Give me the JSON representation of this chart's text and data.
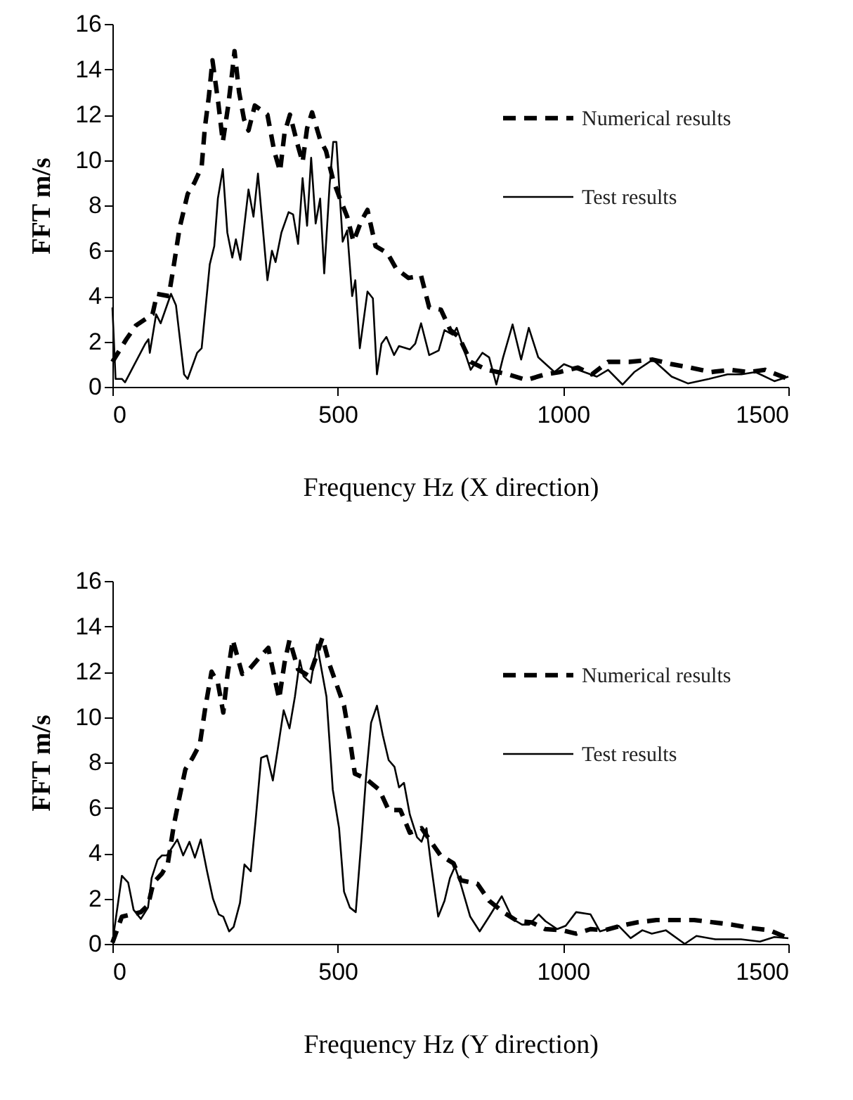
{
  "chart_data": [
    {
      "type": "line",
      "xlabel": "Frequency Hz (X direction)",
      "ylabel": "FFT m/s",
      "xlim": [
        0,
        1500
      ],
      "xticks": [
        0,
        500,
        1000,
        1500
      ],
      "ylim": [
        0,
        16
      ],
      "yticks": [
        0,
        2,
        4,
        6,
        8,
        10,
        12,
        14,
        16
      ],
      "grid": false,
      "legend": "top right",
      "series": [
        {
          "name": "Numerical results",
          "color": "#000000",
          "line_style": "dashed",
          "x": [
            0,
            31,
            52,
            89,
            99,
            125,
            135,
            149,
            167,
            182,
            198,
            205,
            214,
            222,
            235,
            245,
            257,
            266,
            271,
            281,
            292,
            302,
            316,
            344,
            359,
            372,
            382,
            394,
            412,
            422,
            432,
            443,
            461,
            474,
            490,
            505,
            521,
            535,
            552,
            566,
            584,
            610,
            630,
            657,
            685,
            703,
            729,
            750,
            769,
            795,
            831,
            878,
            919,
            960,
            992,
            1033,
            1064,
            1100,
            1147,
            1199,
            1241,
            1282,
            1329,
            1370,
            1412,
            1448,
            1500
          ],
          "values": [
            1.1,
            2.1,
            2.7,
            3.2,
            4.1,
            4.0,
            5.2,
            7.0,
            8.5,
            9.0,
            9.7,
            11.4,
            12.8,
            14.4,
            12.5,
            10.8,
            12.4,
            13.9,
            14.8,
            13.0,
            11.8,
            11.3,
            12.4,
            12.0,
            10.4,
            9.5,
            11.2,
            12.0,
            10.6,
            9.9,
            11.4,
            12.1,
            10.9,
            10.4,
            9.1,
            8.3,
            7.5,
            6.4,
            7.3,
            7.8,
            6.2,
            5.9,
            5.2,
            4.8,
            4.9,
            3.5,
            3.4,
            2.5,
            2.2,
            1.1,
            0.75,
            0.55,
            0.3,
            0.55,
            0.65,
            0.85,
            0.55,
            1.1,
            1.1,
            1.2,
            1.0,
            0.85,
            0.65,
            0.75,
            0.65,
            0.75,
            0.35
          ]
        },
        {
          "name": "Test results",
          "color": "#000000",
          "line_style": "solid",
          "x": [
            0,
            7,
            21,
            28,
            73,
            80,
            83,
            97,
            107,
            130,
            141,
            159,
            167,
            188,
            198,
            216,
            226,
            234,
            245,
            255,
            266,
            274,
            284,
            302,
            313,
            323,
            344,
            354,
            362,
            375,
            391,
            401,
            412,
            422,
            432,
            441,
            451,
            461,
            470,
            482,
            490,
            497,
            511,
            521,
            532,
            539,
            549,
            566,
            578,
            587,
            597,
            608,
            625,
            636,
            660,
            672,
            685,
            703,
            724,
            737,
            755,
            764,
            779,
            795,
            821,
            836,
            852,
            867,
            888,
            907,
            924,
            945,
            981,
            1002,
            1033,
            1075,
            1100,
            1132,
            1158,
            1199,
            1241,
            1277,
            1324,
            1365,
            1396,
            1427,
            1469,
            1500
          ],
          "values": [
            3.5,
            0.35,
            0.35,
            0.2,
            1.9,
            2.1,
            1.5,
            3.2,
            2.8,
            4.1,
            3.6,
            0.55,
            0.35,
            1.5,
            1.7,
            5.4,
            6.2,
            8.3,
            9.6,
            6.8,
            5.7,
            6.5,
            5.6,
            8.7,
            7.5,
            9.4,
            4.7,
            6.0,
            5.5,
            6.8,
            7.7,
            7.6,
            6.3,
            9.2,
            7.1,
            10.1,
            7.2,
            8.3,
            5.0,
            8.9,
            10.8,
            10.8,
            6.4,
            6.9,
            4.0,
            4.7,
            1.7,
            4.2,
            3.9,
            0.55,
            1.9,
            2.2,
            1.4,
            1.8,
            1.65,
            1.9,
            2.8,
            1.4,
            1.6,
            2.5,
            2.3,
            2.6,
            1.7,
            0.75,
            1.5,
            1.3,
            0.1,
            1.3,
            2.75,
            1.2,
            2.6,
            1.3,
            0.65,
            1.0,
            0.75,
            0.45,
            0.75,
            0.1,
            0.65,
            1.2,
            0.45,
            0.15,
            0.35,
            0.55,
            0.55,
            0.65,
            0.25,
            0.45
          ]
        }
      ]
    },
    {
      "type": "line",
      "xlabel": "Frequency Hz (Y direction)",
      "ylabel": "FFT m/s",
      "xlim": [
        0,
        1500
      ],
      "xticks": [
        0,
        500,
        1000,
        1500
      ],
      "ylim": [
        0,
        16
      ],
      "yticks": [
        0,
        2,
        4,
        6,
        8,
        10,
        12,
        14,
        16
      ],
      "grid": false,
      "legend": "top right",
      "series": [
        {
          "name": "Numerical results",
          "color": "#000000",
          "line_style": "dashed",
          "x": [
            0,
            21,
            42,
            63,
            79,
            91,
            110,
            123,
            136,
            147,
            162,
            178,
            194,
            206,
            220,
            234,
            246,
            255,
            267,
            288,
            299,
            325,
            346,
            359,
            370,
            382,
            393,
            412,
            437,
            451,
            466,
            482,
            498,
            514,
            527,
            538,
            561,
            592,
            613,
            639,
            660,
            686,
            707,
            728,
            757,
            773,
            810,
            836,
            867,
            899,
            930,
            961,
            998,
            1029,
            1061,
            1092,
            1129,
            1165,
            1207,
            1249,
            1291,
            1333,
            1374,
            1416,
            1458,
            1500
          ],
          "values": [
            0.05,
            1.2,
            1.3,
            1.4,
            1.7,
            2.7,
            3.1,
            3.55,
            5.2,
            6.3,
            7.7,
            8.2,
            8.8,
            10.4,
            12.0,
            11.5,
            10.2,
            11.8,
            13.4,
            11.9,
            12.0,
            12.6,
            13.05,
            11.8,
            10.8,
            12.4,
            13.4,
            12.1,
            11.8,
            12.6,
            13.5,
            12.3,
            11.4,
            10.5,
            9.0,
            7.5,
            7.3,
            6.8,
            5.9,
            5.9,
            4.9,
            5.1,
            4.5,
            3.9,
            3.55,
            2.8,
            2.65,
            1.9,
            1.4,
            1.0,
            0.95,
            0.65,
            0.6,
            0.45,
            0.65,
            0.6,
            0.8,
            0.95,
            1.05,
            1.05,
            1.05,
            0.95,
            0.85,
            0.7,
            0.6,
            0.25
          ]
        },
        {
          "name": "Test results",
          "color": "#000000",
          "line_style": "solid",
          "x": [
            0,
            21,
            35,
            47,
            63,
            79,
            87,
            100,
            110,
            121,
            131,
            144,
            157,
            171,
            183,
            196,
            210,
            223,
            236,
            246,
            259,
            269,
            283,
            293,
            307,
            318,
            330,
            343,
            356,
            367,
            380,
            393,
            405,
            416,
            424,
            440,
            454,
            464,
            475,
            489,
            503,
            514,
            527,
            540,
            553,
            563,
            574,
            587,
            600,
            613,
            626,
            636,
            647,
            660,
            676,
            686,
            697,
            707,
            723,
            737,
            749,
            760,
            772,
            794,
            815,
            836,
            864,
            888,
            909,
            925,
            946,
            961,
            987,
            1006,
            1029,
            1061,
            1082,
            1123,
            1150,
            1176,
            1197,
            1228,
            1270,
            1296,
            1338,
            1395,
            1437,
            1469,
            1500
          ],
          "values": [
            0.05,
            3.0,
            2.7,
            1.5,
            1.1,
            1.6,
            2.9,
            3.7,
            3.9,
            3.9,
            4.2,
            4.6,
            3.9,
            4.5,
            3.8,
            4.6,
            3.2,
            2.0,
            1.3,
            1.2,
            0.55,
            0.75,
            1.8,
            3.5,
            3.2,
            5.5,
            8.2,
            8.3,
            7.2,
            8.6,
            10.3,
            9.5,
            10.9,
            12.5,
            11.8,
            11.5,
            13.2,
            12.1,
            10.9,
            6.8,
            5.1,
            2.3,
            1.6,
            1.4,
            4.7,
            7.4,
            9.75,
            10.5,
            9.2,
            8.1,
            7.8,
            6.9,
            7.1,
            5.7,
            4.7,
            4.5,
            5.1,
            3.5,
            1.2,
            1.9,
            2.9,
            3.4,
            2.7,
            1.2,
            0.55,
            1.2,
            2.1,
            1.1,
            0.85,
            0.85,
            1.3,
            1.0,
            0.65,
            0.8,
            1.4,
            1.3,
            0.55,
            0.8,
            0.25,
            0.6,
            0.45,
            0.6,
            0.0,
            0.35,
            0.2,
            0.2,
            0.1,
            0.3,
            0.25
          ]
        }
      ]
    }
  ]
}
